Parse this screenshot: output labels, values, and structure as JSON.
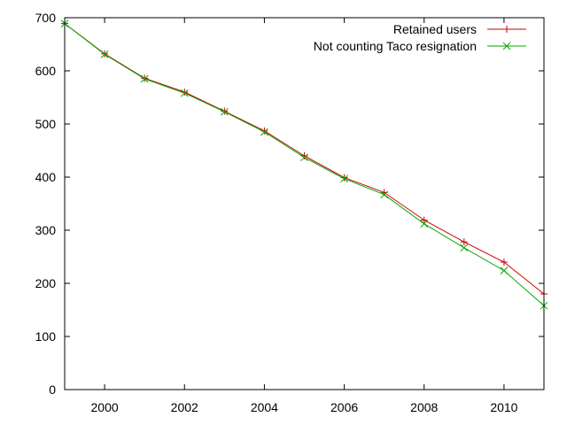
{
  "chart_data": {
    "type": "line",
    "xlim": [
      1999,
      2011
    ],
    "ylim": [
      0,
      700
    ],
    "x_ticks": [
      2000,
      2002,
      2004,
      2006,
      2008,
      2010
    ],
    "y_ticks": [
      0,
      100,
      200,
      300,
      400,
      500,
      600,
      700
    ],
    "grid": false,
    "legend_position": "top-right",
    "x": [
      1999,
      2000,
      2001,
      2002,
      2003,
      2004,
      2005,
      2006,
      2007,
      2008,
      2009,
      2010,
      2011
    ],
    "series": [
      {
        "name": "Retained users",
        "color": "#cc0000",
        "marker": "plus",
        "values": [
          689,
          632,
          586,
          560,
          524,
          487,
          440,
          399,
          371,
          319,
          278,
          240,
          180
        ]
      },
      {
        "name": "Not counting Taco resignation",
        "color": "#00aa00",
        "marker": "cross",
        "values": [
          689,
          631,
          585,
          558,
          523,
          485,
          437,
          397,
          367,
          312,
          267,
          224,
          158
        ]
      }
    ]
  }
}
